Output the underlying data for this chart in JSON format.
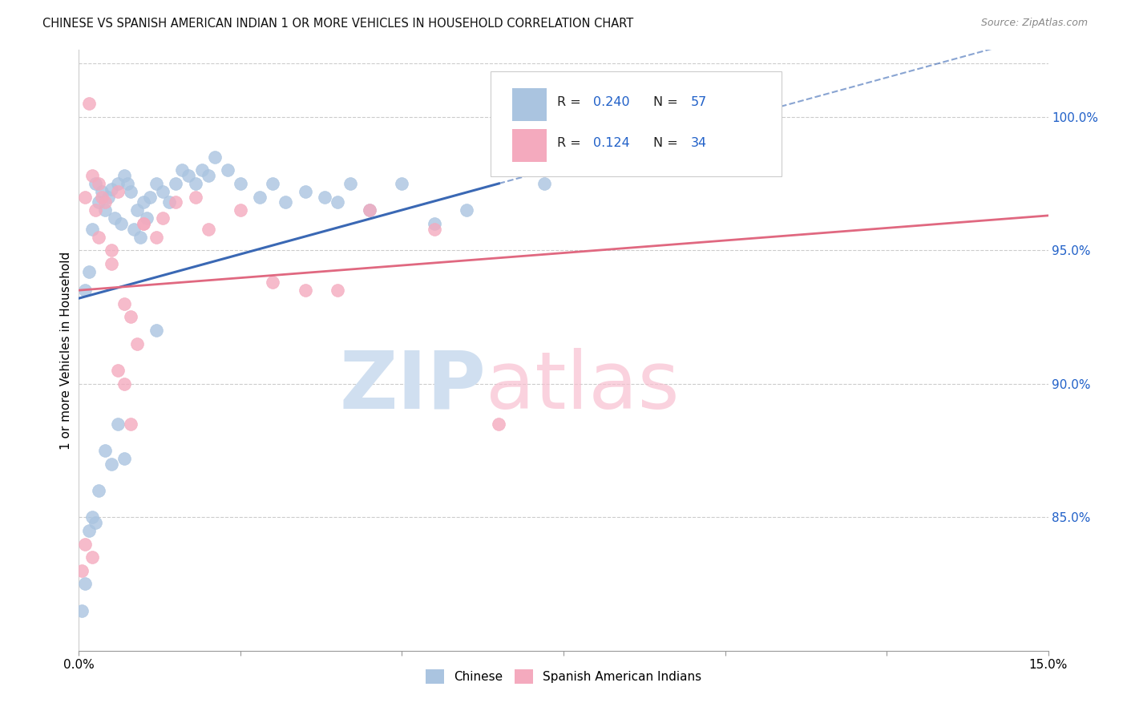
{
  "title": "CHINESE VS SPANISH AMERICAN INDIAN 1 OR MORE VEHICLES IN HOUSEHOLD CORRELATION CHART",
  "source": "Source: ZipAtlas.com",
  "ylabel": "1 or more Vehicles in Household",
  "x_range": [
    0.0,
    15.0
  ],
  "y_range": [
    80.0,
    102.5
  ],
  "y_ticks": [
    85,
    90,
    95,
    100
  ],
  "y_tick_labels": [
    "85.0%",
    "90.0%",
    "95.0%",
    "100.0%"
  ],
  "chinese_R": 0.24,
  "chinese_N": 57,
  "spanish_R": 0.124,
  "spanish_N": 34,
  "chinese_color": "#aac4e0",
  "spanish_color": "#f4aabe",
  "chinese_line_color": "#3a68b4",
  "spanish_line_color": "#e06880",
  "legend_label_color": "#2060c8",
  "watermark_color": "#d0dff0",
  "watermark_pink": "#f8c0d0",
  "chinese_x": [
    0.1,
    0.15,
    0.2,
    0.25,
    0.3,
    0.35,
    0.4,
    0.45,
    0.5,
    0.55,
    0.6,
    0.65,
    0.7,
    0.75,
    0.8,
    0.85,
    0.9,
    0.95,
    1.0,
    1.05,
    1.1,
    1.2,
    1.3,
    1.4,
    1.5,
    1.6,
    1.7,
    1.8,
    1.9,
    2.0,
    2.1,
    2.3,
    2.5,
    2.8,
    3.0,
    3.2,
    3.5,
    3.8,
    4.0,
    4.2,
    4.5,
    5.0,
    5.5,
    6.0,
    6.8,
    7.2,
    0.05,
    0.1,
    0.15,
    0.2,
    0.25,
    0.3,
    0.4,
    0.5,
    0.6,
    0.7,
    1.2
  ],
  "chinese_y": [
    93.5,
    94.2,
    95.8,
    97.5,
    96.8,
    97.2,
    96.5,
    97.0,
    97.3,
    96.2,
    97.5,
    96.0,
    97.8,
    97.5,
    97.2,
    95.8,
    96.5,
    95.5,
    96.8,
    96.2,
    97.0,
    97.5,
    97.2,
    96.8,
    97.5,
    98.0,
    97.8,
    97.5,
    98.0,
    97.8,
    98.5,
    98.0,
    97.5,
    97.0,
    97.5,
    96.8,
    97.2,
    97.0,
    96.8,
    97.5,
    96.5,
    97.5,
    96.0,
    96.5,
    98.2,
    97.5,
    81.5,
    82.5,
    84.5,
    85.0,
    84.8,
    86.0,
    87.5,
    87.0,
    88.5,
    87.2,
    92.0
  ],
  "spanish_x": [
    0.05,
    0.1,
    0.15,
    0.2,
    0.25,
    0.3,
    0.35,
    0.4,
    0.5,
    0.6,
    0.7,
    0.8,
    0.9,
    1.0,
    1.2,
    1.5,
    1.8,
    2.0,
    2.5,
    3.0,
    3.5,
    4.0,
    4.5,
    5.5,
    6.5,
    0.1,
    0.2,
    0.3,
    0.5,
    0.6,
    0.7,
    0.8,
    1.0,
    1.3
  ],
  "spanish_y": [
    83.0,
    84.0,
    100.5,
    83.5,
    96.5,
    95.5,
    97.0,
    96.8,
    95.0,
    90.5,
    90.0,
    88.5,
    91.5,
    96.0,
    95.5,
    96.8,
    97.0,
    95.8,
    96.5,
    93.8,
    93.5,
    93.5,
    96.5,
    95.8,
    88.5,
    97.0,
    97.8,
    97.5,
    94.5,
    97.2,
    93.0,
    92.5,
    96.0,
    96.2
  ],
  "trend_chinese_x0": 0.0,
  "trend_chinese_y0": 93.2,
  "trend_chinese_x1": 6.5,
  "trend_chinese_y1": 97.5,
  "trend_spanish_x0": 0.0,
  "trend_spanish_y0": 93.5,
  "trend_spanish_x1": 15.0,
  "trend_spanish_y1": 96.3
}
